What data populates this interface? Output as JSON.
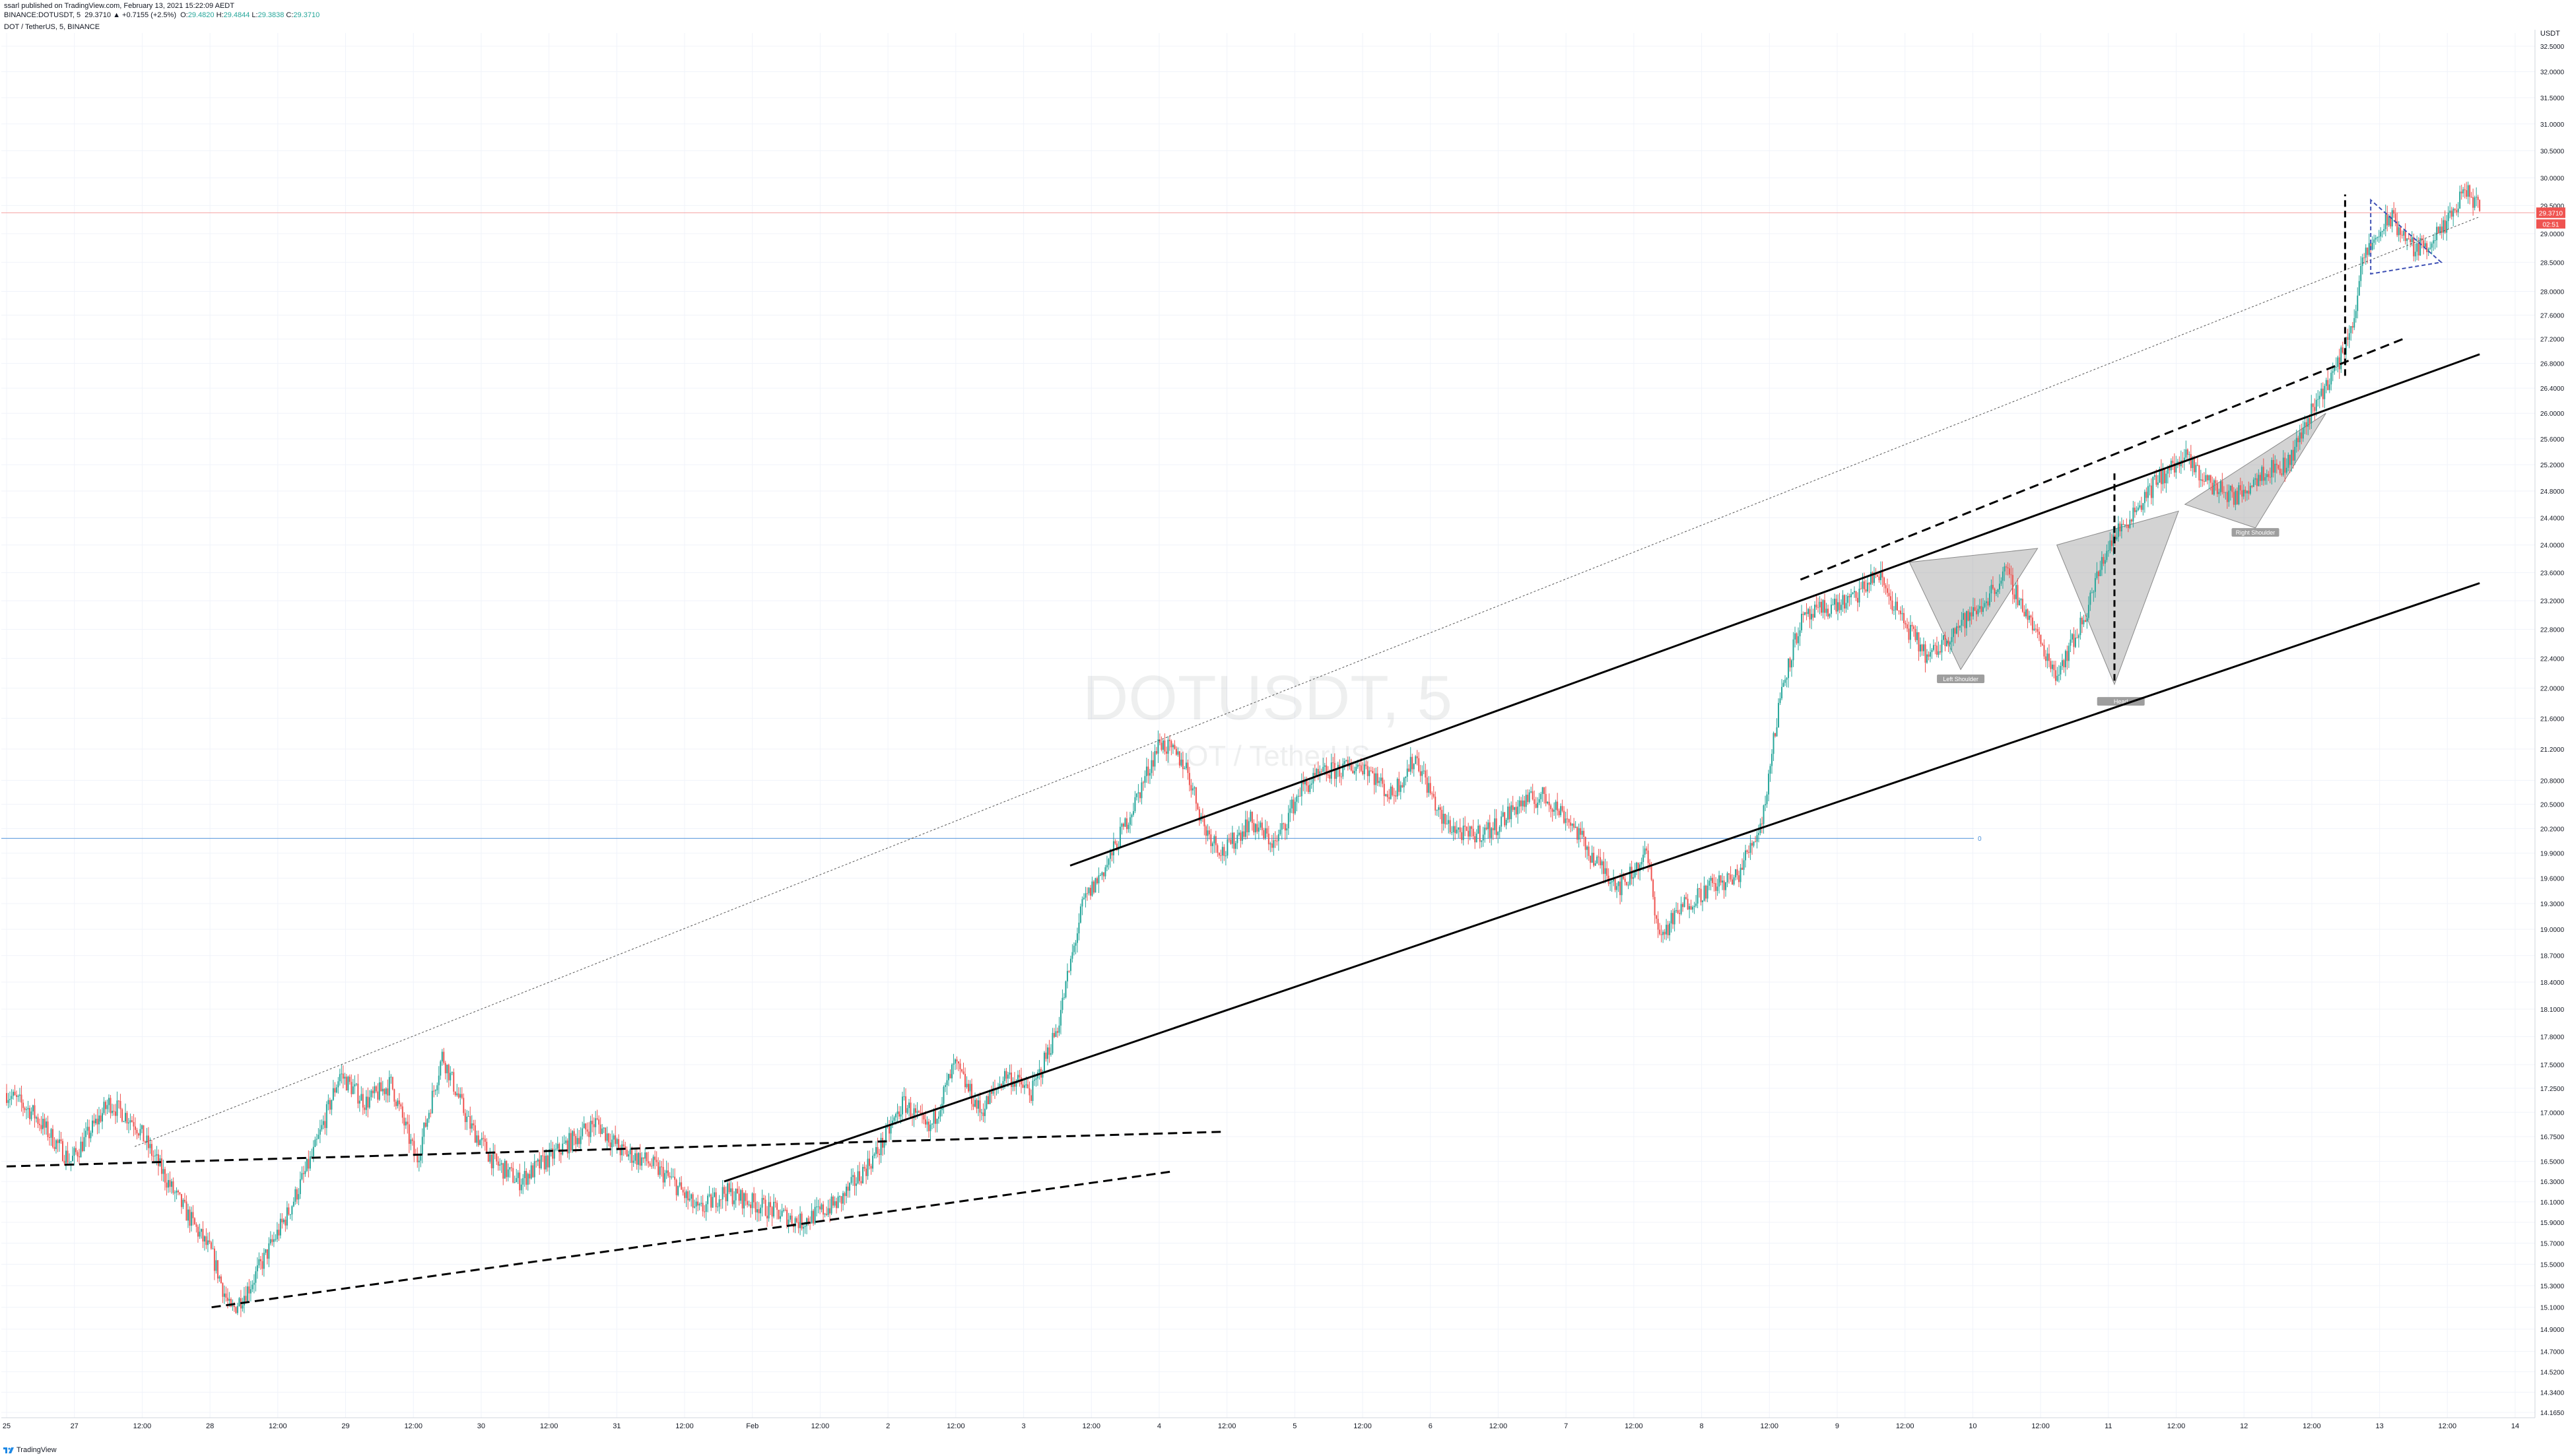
{
  "header": {
    "publish_line": "ssarl published on TradingView.com, February 13, 2021 15:22:09 AEDT",
    "symbol": "BINANCE:DOTUSDT, 5",
    "last": "29.3710",
    "change": "+0.7155 (+2.5%)",
    "o_label": "O:",
    "o": "29.4820",
    "h_label": "H:",
    "h": "29.4844",
    "l_label": "L:",
    "l": "29.3838",
    "c_label": "C:",
    "c": "29.3710",
    "pane_title": "DOT / TetherUS, 5, BINANCE"
  },
  "watermark": {
    "symbol": "DOTUSDT, 5",
    "name": "DOT / TetherUS"
  },
  "footer": {
    "brand": "TradingView"
  },
  "colors": {
    "up": "#26a69a",
    "down": "#ef5350",
    "trendline": "#000000",
    "hline": "#4a8fd9",
    "price_label_bg": "#ef5350",
    "pattern_fill": "#9e9e9e",
    "current_line": "#f5a3a3"
  },
  "chart_data": {
    "type": "candlestick",
    "title": "DOT / TetherUS, 5, BINANCE",
    "y_axis": {
      "unit": "USDT",
      "ticks": [
        "32.5000",
        "32.0000",
        "31.5000",
        "31.0000",
        "30.5000",
        "30.0000",
        "29.5000",
        "29.0000",
        "28.5000",
        "28.0000",
        "27.6000",
        "27.2000",
        "26.8000",
        "26.4000",
        "26.0000",
        "25.6000",
        "25.2000",
        "24.8000",
        "24.4000",
        "24.0000",
        "23.6000",
        "23.2000",
        "22.8000",
        "22.4000",
        "22.0000",
        "21.6000",
        "21.2000",
        "20.8000",
        "20.5000",
        "20.2000",
        "19.9000",
        "19.6000",
        "19.3000",
        "19.0000",
        "18.7000",
        "18.4000",
        "18.1000",
        "17.8000",
        "17.5000",
        "17.2500",
        "17.0000",
        "16.7500",
        "16.5000",
        "16.3000",
        "16.1000",
        "15.9000",
        "15.7000",
        "15.5000",
        "15.3000",
        "15.1000",
        "14.9000",
        "14.7000",
        "14.5200",
        "14.3400",
        "14.1650"
      ],
      "scale": "log"
    },
    "x_axis": {
      "ticks": [
        "25",
        "27",
        "12:00",
        "28",
        "12:00",
        "29",
        "12:00",
        "30",
        "12:00",
        "31",
        "12:00",
        "Feb",
        "12:00",
        "2",
        "12:00",
        "3",
        "12:00",
        "4",
        "12:00",
        "5",
        "12:00",
        "6",
        "12:00",
        "7",
        "12:00",
        "8",
        "12:00",
        "9",
        "12:00",
        "10",
        "12:00",
        "11",
        "12:00",
        "12",
        "12:00",
        "13",
        "12:00",
        "14"
      ]
    },
    "current_price": {
      "value": "29.3710",
      "countdown": "02:51"
    },
    "horizontal_line": {
      "price": 20.08,
      "label": "0"
    },
    "price_path": [
      [
        0,
        17.2
      ],
      [
        0.2,
        17.0
      ],
      [
        0.5,
        16.5
      ],
      [
        0.8,
        17.1
      ],
      [
        1.0,
        16.9
      ],
      [
        1.3,
        16.2
      ],
      [
        1.6,
        15.6
      ],
      [
        1.75,
        15.05
      ],
      [
        1.9,
        15.3
      ],
      [
        2.2,
        16.0
      ],
      [
        2.4,
        16.6
      ],
      [
        2.6,
        17.4
      ],
      [
        2.8,
        17.1
      ],
      [
        3.0,
        17.3
      ],
      [
        3.2,
        16.5
      ],
      [
        3.4,
        17.6
      ],
      [
        3.6,
        16.9
      ],
      [
        3.8,
        16.5
      ],
      [
        4.0,
        16.3
      ],
      [
        4.3,
        16.6
      ],
      [
        4.6,
        16.9
      ],
      [
        4.8,
        16.6
      ],
      [
        5.0,
        16.5
      ],
      [
        5.2,
        16.3
      ],
      [
        5.4,
        16.0
      ],
      [
        5.6,
        16.2
      ],
      [
        5.8,
        16.1
      ],
      [
        6.0,
        16.0
      ],
      [
        6.2,
        15.9
      ],
      [
        6.5,
        16.1
      ],
      [
        6.8,
        16.6
      ],
      [
        7.0,
        17.1
      ],
      [
        7.2,
        16.8
      ],
      [
        7.4,
        17.5
      ],
      [
        7.6,
        17.0
      ],
      [
        7.8,
        17.4
      ],
      [
        8.0,
        17.2
      ],
      [
        8.2,
        17.9
      ],
      [
        8.4,
        19.3
      ],
      [
        8.6,
        19.8
      ],
      [
        8.8,
        20.5
      ],
      [
        9.0,
        21.3
      ],
      [
        9.2,
        21.0
      ],
      [
        9.35,
        20.2
      ],
      [
        9.5,
        19.9
      ],
      [
        9.7,
        20.3
      ],
      [
        9.9,
        20.0
      ],
      [
        10.1,
        20.7
      ],
      [
        10.3,
        20.9
      ],
      [
        10.6,
        21.0
      ],
      [
        10.8,
        20.6
      ],
      [
        11.0,
        21.1
      ],
      [
        11.2,
        20.3
      ],
      [
        11.4,
        20.1
      ],
      [
        11.6,
        20.2
      ],
      [
        11.8,
        20.5
      ],
      [
        12.0,
        20.6
      ],
      [
        12.2,
        20.3
      ],
      [
        12.4,
        19.8
      ],
      [
        12.6,
        19.5
      ],
      [
        12.8,
        19.9
      ],
      [
        12.9,
        18.9
      ],
      [
        13.1,
        19.3
      ],
      [
        13.3,
        19.5
      ],
      [
        13.5,
        19.6
      ],
      [
        13.7,
        20.3
      ],
      [
        13.85,
        22.0
      ],
      [
        14.0,
        22.9
      ],
      [
        14.2,
        23.1
      ],
      [
        14.4,
        23.2
      ],
      [
        14.6,
        23.6
      ],
      [
        14.8,
        22.9
      ],
      [
        15.0,
        22.4
      ],
      [
        15.2,
        22.8
      ],
      [
        15.4,
        23.1
      ],
      [
        15.6,
        23.6
      ],
      [
        15.8,
        22.9
      ],
      [
        15.9,
        22.5
      ],
      [
        16.0,
        22.2
      ],
      [
        16.2,
        22.9
      ],
      [
        16.4,
        24.0
      ],
      [
        16.6,
        24.5
      ],
      [
        16.8,
        25.0
      ],
      [
        17.0,
        25.3
      ],
      [
        17.2,
        24.9
      ],
      [
        17.4,
        24.7
      ],
      [
        17.6,
        25.1
      ],
      [
        17.8,
        25.2
      ],
      [
        18.0,
        26.1
      ],
      [
        18.2,
        26.8
      ],
      [
        18.3,
        27.4
      ],
      [
        18.4,
        28.6
      ],
      [
        18.6,
        29.3
      ],
      [
        18.8,
        28.7
      ],
      [
        19.0,
        29.0
      ],
      [
        19.2,
        29.8
      ],
      [
        19.3,
        29.37
      ]
    ],
    "drawings": [
      {
        "type": "trendline",
        "style": "dashed",
        "from": [
          0,
          16.45
        ],
        "to": [
          9.5,
          16.8
        ]
      },
      {
        "type": "trendline",
        "style": "dashed",
        "from": [
          1.6,
          15.1
        ],
        "to": [
          9.1,
          16.4
        ]
      },
      {
        "type": "trendline",
        "style": "solid",
        "from": [
          5.6,
          16.3
        ],
        "to": [
          19.3,
          23.45
        ]
      },
      {
        "type": "trendline",
        "style": "solid",
        "from": [
          8.3,
          19.75
        ],
        "to": [
          19.3,
          26.95
        ]
      },
      {
        "type": "trendline",
        "style": "dotted",
        "from": [
          1.0,
          16.65
        ],
        "to": [
          19.3,
          29.3
        ]
      },
      {
        "type": "trendline",
        "style": "dashed",
        "from": [
          14.0,
          23.5
        ],
        "to": [
          18.7,
          27.2
        ]
      }
    ],
    "pattern_labels": [
      "Left Shoulder",
      "Head",
      "Right Shoulder"
    ]
  }
}
